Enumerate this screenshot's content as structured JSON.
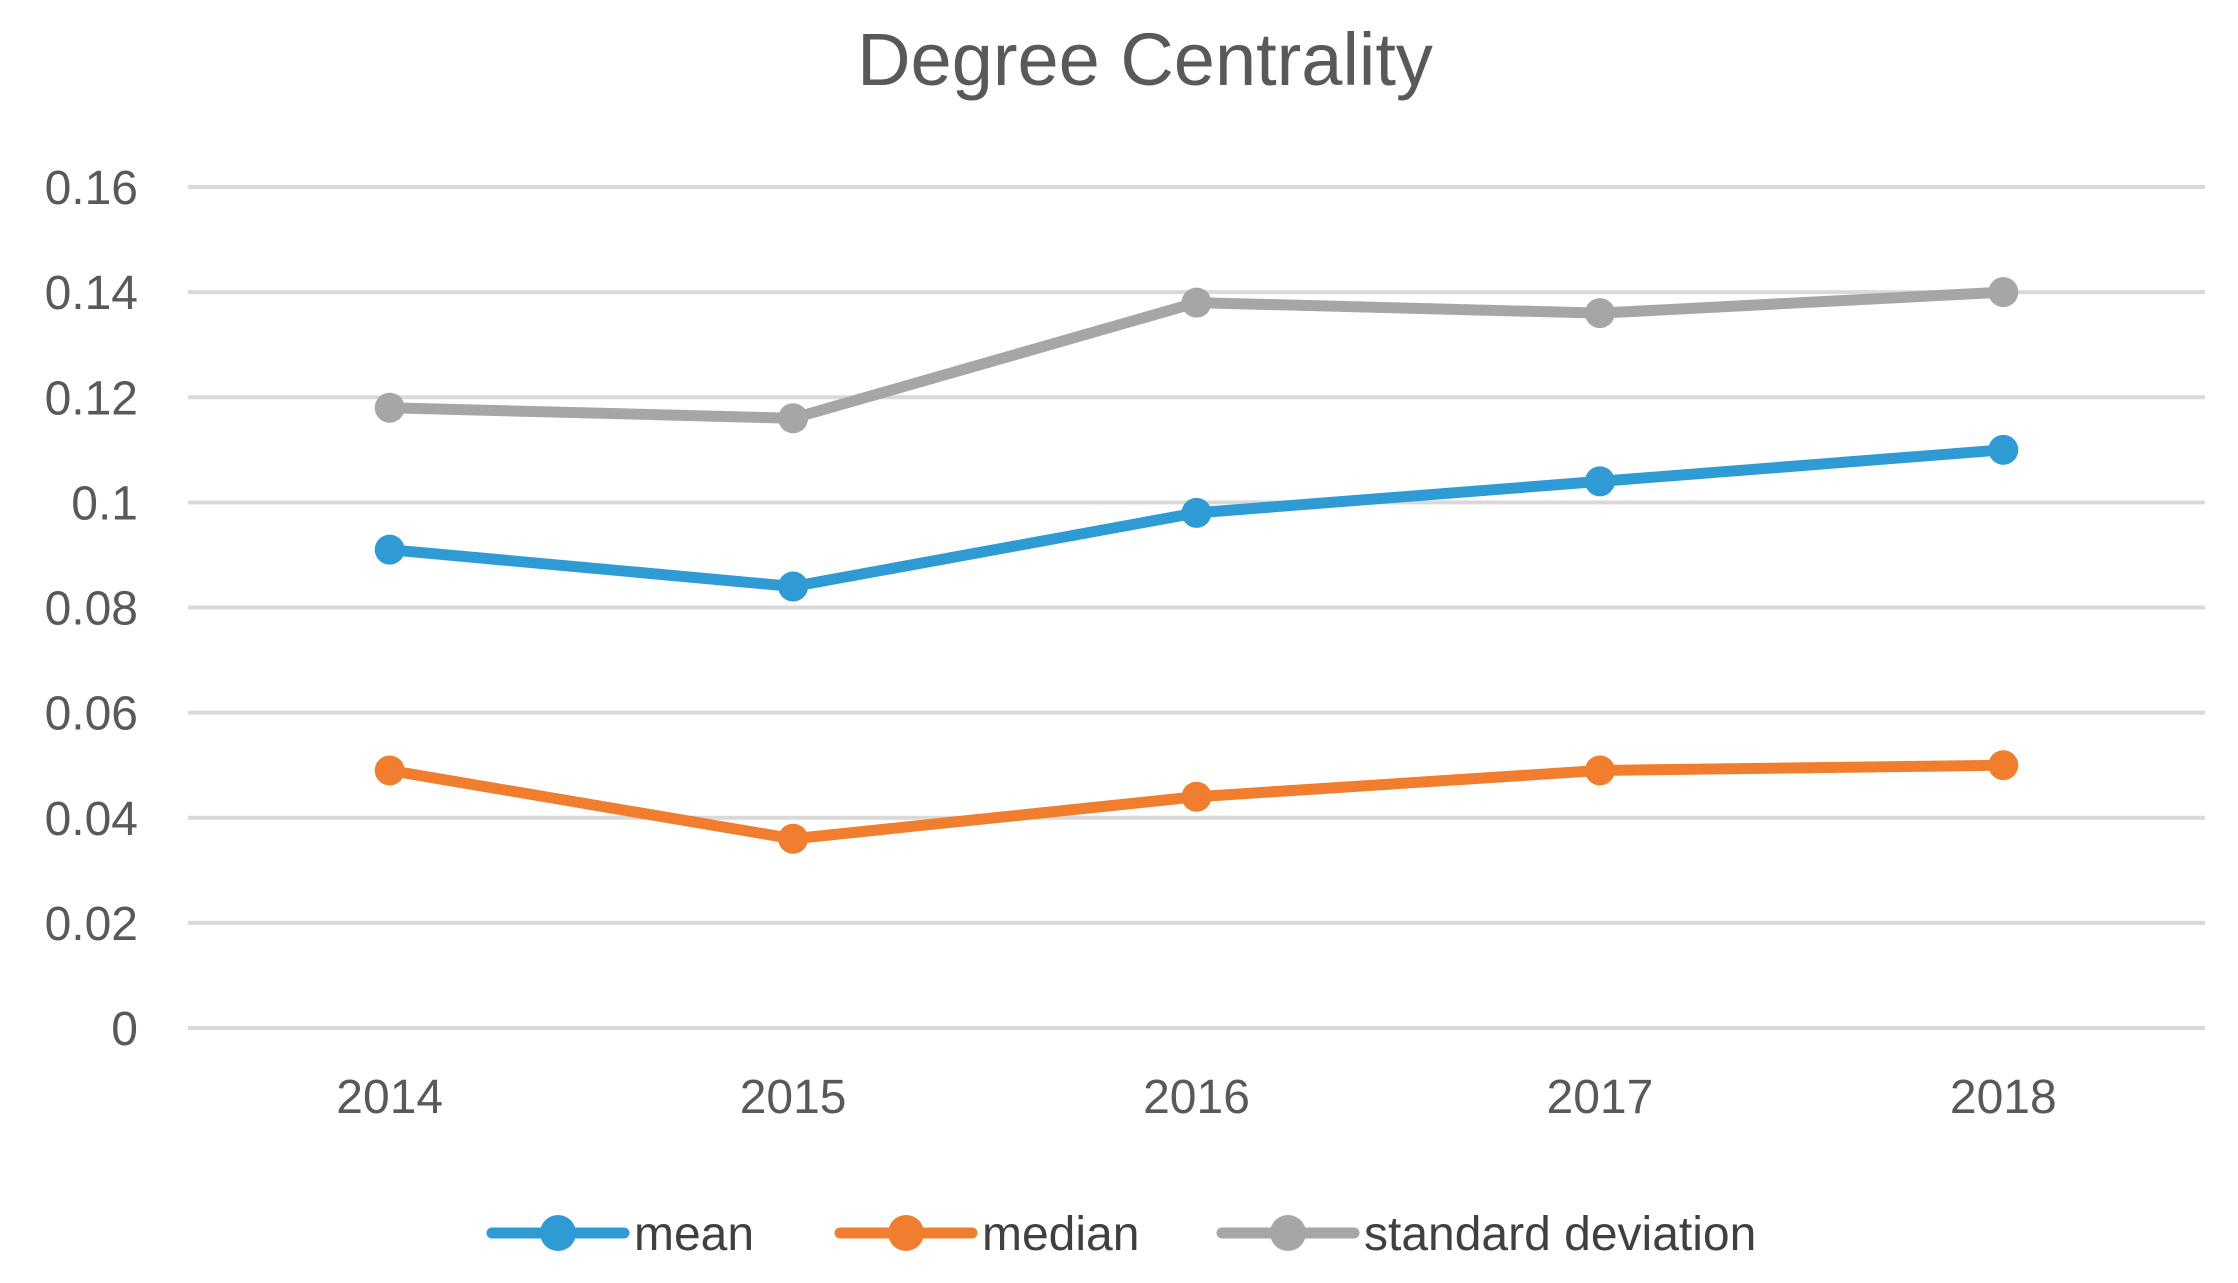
{
  "title": "Degree Centrality",
  "colors": {
    "mean": "#2E9BD5",
    "median": "#F07E2E",
    "standard_deviation": "#A6A6A6",
    "gridline": "#D9D9D9",
    "axis_text": "#595959",
    "title_text": "#595959",
    "legend_text": "#404040",
    "background": "#FFFFFF"
  },
  "legend": {
    "items": [
      {
        "label": "mean",
        "color": "#2E9BD5"
      },
      {
        "label": "median",
        "color": "#F07E2E"
      },
      {
        "label": "standard deviation",
        "color": "#A6A6A6"
      }
    ]
  },
  "chart_data": {
    "type": "line",
    "title": "Degree Centrality",
    "categories": [
      "2014",
      "2015",
      "2016",
      "2017",
      "2018"
    ],
    "series": [
      {
        "name": "mean",
        "color": "#2E9BD5",
        "values": [
          0.091,
          0.084,
          0.098,
          0.104,
          0.11
        ]
      },
      {
        "name": "median",
        "color": "#F07E2E",
        "values": [
          0.049,
          0.036,
          0.044,
          0.049,
          0.05
        ]
      },
      {
        "name": "standard deviation",
        "color": "#A6A6A6",
        "values": [
          0.118,
          0.116,
          0.138,
          0.136,
          0.14
        ]
      }
    ],
    "xlabel": "",
    "ylabel": "",
    "ylim": [
      0,
      0.16
    ],
    "ytick_interval": 0.02,
    "ytick_labels": [
      "0",
      "0.02",
      "0.04",
      "0.06",
      "0.08",
      "0.1",
      "0.12",
      "0.14",
      "0.16"
    ],
    "grid": "horizontal",
    "legend_position": "bottom",
    "marker": "circle"
  }
}
